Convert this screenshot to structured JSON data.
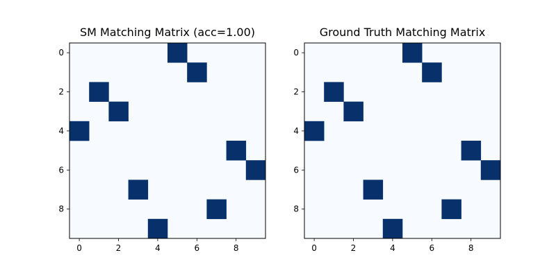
{
  "chart_data": [
    {
      "type": "heatmap",
      "title": "SM Matching Matrix (acc=1.00)",
      "xlabel": "",
      "ylabel": "",
      "rows": 10,
      "cols": 10,
      "xticks": [
        0,
        2,
        4,
        6,
        8
      ],
      "yticks": [
        0,
        2,
        4,
        6,
        8
      ],
      "xlim": [
        -0.5,
        9.5
      ],
      "ylim": [
        9.5,
        -0.5
      ],
      "colormap": {
        "low": "#f7fbff",
        "high": "#08306b"
      },
      "values": [
        [
          0,
          0,
          0,
          0,
          0,
          1,
          0,
          0,
          0,
          0
        ],
        [
          0,
          0,
          0,
          0,
          0,
          0,
          1,
          0,
          0,
          0
        ],
        [
          0,
          1,
          0,
          0,
          0,
          0,
          0,
          0,
          0,
          0
        ],
        [
          0,
          0,
          1,
          0,
          0,
          0,
          0,
          0,
          0,
          0
        ],
        [
          1,
          0,
          0,
          0,
          0,
          0,
          0,
          0,
          0,
          0
        ],
        [
          0,
          0,
          0,
          0,
          0,
          0,
          0,
          0,
          1,
          0
        ],
        [
          0,
          0,
          0,
          0,
          0,
          0,
          0,
          0,
          0,
          1
        ],
        [
          0,
          0,
          0,
          1,
          0,
          0,
          0,
          0,
          0,
          0
        ],
        [
          0,
          0,
          0,
          0,
          0,
          0,
          0,
          1,
          0,
          0
        ],
        [
          0,
          0,
          0,
          0,
          1,
          0,
          0,
          0,
          0,
          0
        ]
      ],
      "grid": false
    },
    {
      "type": "heatmap",
      "title": "Ground Truth Matching Matrix",
      "xlabel": "",
      "ylabel": "",
      "rows": 10,
      "cols": 10,
      "xticks": [
        0,
        2,
        4,
        6,
        8
      ],
      "yticks": [
        0,
        2,
        4,
        6,
        8
      ],
      "xlim": [
        -0.5,
        9.5
      ],
      "ylim": [
        9.5,
        -0.5
      ],
      "colormap": {
        "low": "#f7fbff",
        "high": "#08306b"
      },
      "values": [
        [
          0,
          0,
          0,
          0,
          0,
          1,
          0,
          0,
          0,
          0
        ],
        [
          0,
          0,
          0,
          0,
          0,
          0,
          1,
          0,
          0,
          0
        ],
        [
          0,
          1,
          0,
          0,
          0,
          0,
          0,
          0,
          0,
          0
        ],
        [
          0,
          0,
          1,
          0,
          0,
          0,
          0,
          0,
          0,
          0
        ],
        [
          1,
          0,
          0,
          0,
          0,
          0,
          0,
          0,
          0,
          0
        ],
        [
          0,
          0,
          0,
          0,
          0,
          0,
          0,
          0,
          1,
          0
        ],
        [
          0,
          0,
          0,
          0,
          0,
          0,
          0,
          0,
          0,
          1
        ],
        [
          0,
          0,
          0,
          1,
          0,
          0,
          0,
          0,
          0,
          0
        ],
        [
          0,
          0,
          0,
          0,
          0,
          0,
          0,
          1,
          0,
          0
        ],
        [
          0,
          0,
          0,
          0,
          1,
          0,
          0,
          0,
          0,
          0
        ]
      ],
      "grid": false
    }
  ]
}
